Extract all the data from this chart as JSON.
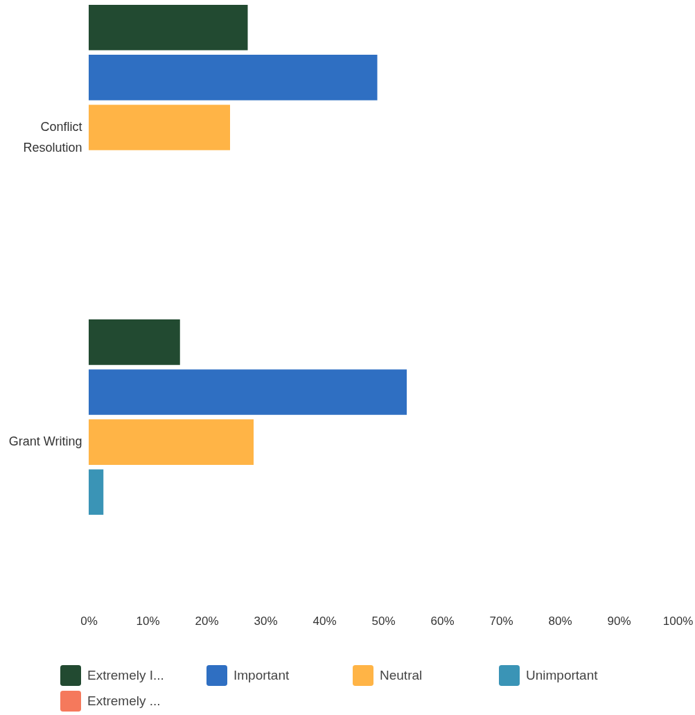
{
  "chart_data": {
    "type": "bar",
    "orientation": "horizontal",
    "categories": [
      "Conflict Resolution",
      "Grant Writing"
    ],
    "series": [
      {
        "name": "Extremely I...",
        "color": "#224a31",
        "values": [
          27,
          15.5
        ]
      },
      {
        "name": "Important",
        "color": "#2f6fc2",
        "values": [
          49,
          54
        ]
      },
      {
        "name": "Neutral",
        "color": "#ffb446",
        "values": [
          24,
          28
        ]
      },
      {
        "name": "Unimportant",
        "color": "#3a94b6",
        "values": [
          null,
          2.5
        ]
      },
      {
        "name": "Extremely ...",
        "color": "#f5795c",
        "values": [
          null,
          null
        ]
      }
    ],
    "xlim": [
      0,
      100
    ],
    "xticks": [
      {
        "value": 0,
        "label": "0%"
      },
      {
        "value": 10,
        "label": "10%"
      },
      {
        "value": 20,
        "label": "20%"
      },
      {
        "value": 30,
        "label": "30%"
      },
      {
        "value": 40,
        "label": "40%"
      },
      {
        "value": 50,
        "label": "50%"
      },
      {
        "value": 60,
        "label": "60%"
      },
      {
        "value": 70,
        "label": "70%"
      },
      {
        "value": 80,
        "label": "80%"
      },
      {
        "value": 90,
        "label": "90%"
      },
      {
        "value": 100,
        "label": "100%"
      }
    ],
    "legend": "bottom"
  }
}
